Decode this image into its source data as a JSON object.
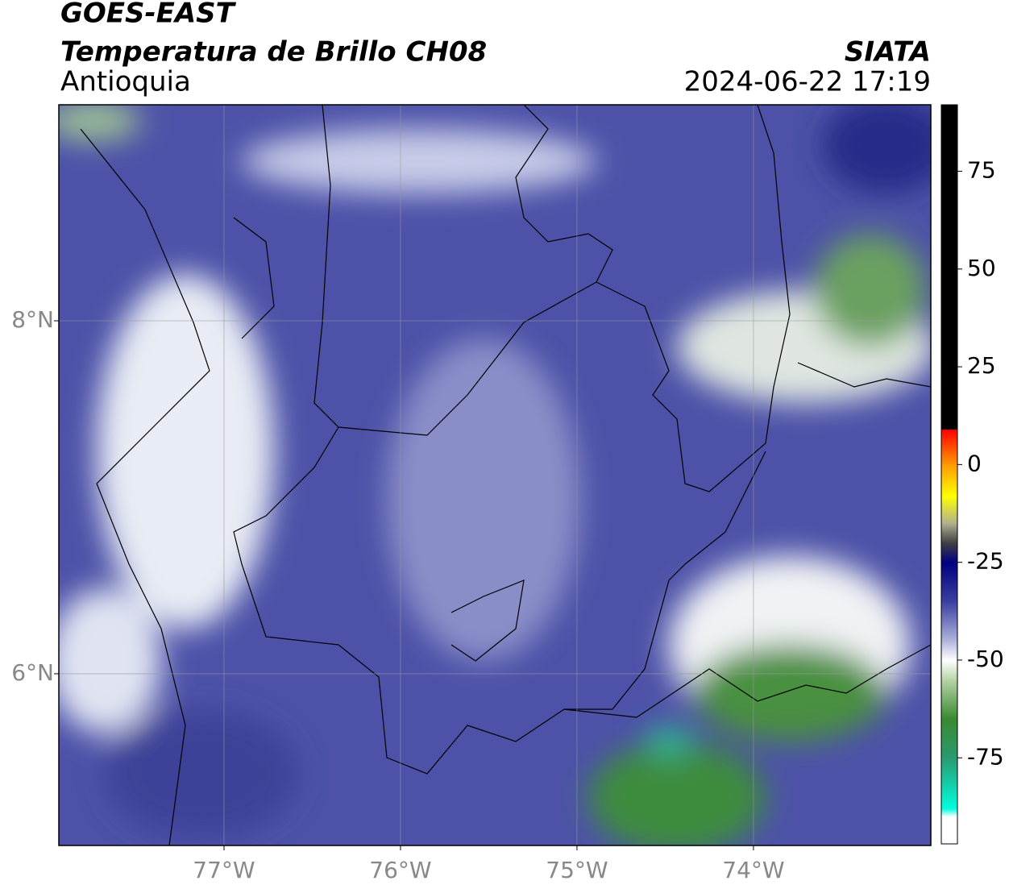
{
  "header": {
    "title": "GOES-EAST",
    "subtitle": "Temperatura de Brillo CH08",
    "region": "Antioquia",
    "source": "SIATA",
    "datetime": "2024-06-22 17:19"
  },
  "map": {
    "xlim": [
      -77.936,
      -72.995
    ],
    "ylim": [
      5.027,
      9.224
    ],
    "grid": true,
    "xticks": [
      {
        "value": -77,
        "label": "77°W"
      },
      {
        "value": -76,
        "label": "76°W"
      },
      {
        "value": -75,
        "label": "75°W"
      },
      {
        "value": -74,
        "label": "74°W"
      }
    ],
    "yticks": [
      {
        "value": 6,
        "label": "6°N"
      },
      {
        "value": 8,
        "label": "8°N"
      }
    ]
  },
  "colorbar": {
    "lim": [
      -97,
      92
    ],
    "ticks": [
      75,
      50,
      25,
      0,
      -25,
      -50,
      -75
    ],
    "stops": [
      {
        "value": 92,
        "color": "#000000"
      },
      {
        "value": 9,
        "color": "#000000"
      },
      {
        "value": 8.9,
        "color": "#ff0000"
      },
      {
        "value": 0,
        "color": "#ff9900"
      },
      {
        "value": -8,
        "color": "#ffff00"
      },
      {
        "value": -15,
        "color": "#b0b090"
      },
      {
        "value": -20,
        "color": "#404040"
      },
      {
        "value": -25,
        "color": "#000080"
      },
      {
        "value": -35,
        "color": "#3a3fa0"
      },
      {
        "value": -45,
        "color": "#b0b4dc"
      },
      {
        "value": -50,
        "color": "#ffffff"
      },
      {
        "value": -55,
        "color": "#b8d4a8"
      },
      {
        "value": -65,
        "color": "#3a8a30"
      },
      {
        "value": -75,
        "color": "#2a9a70"
      },
      {
        "value": -88,
        "color": "#00ffe0"
      },
      {
        "value": -90,
        "color": "#ffffff"
      },
      {
        "value": -97,
        "color": "#ffffff"
      }
    ]
  }
}
